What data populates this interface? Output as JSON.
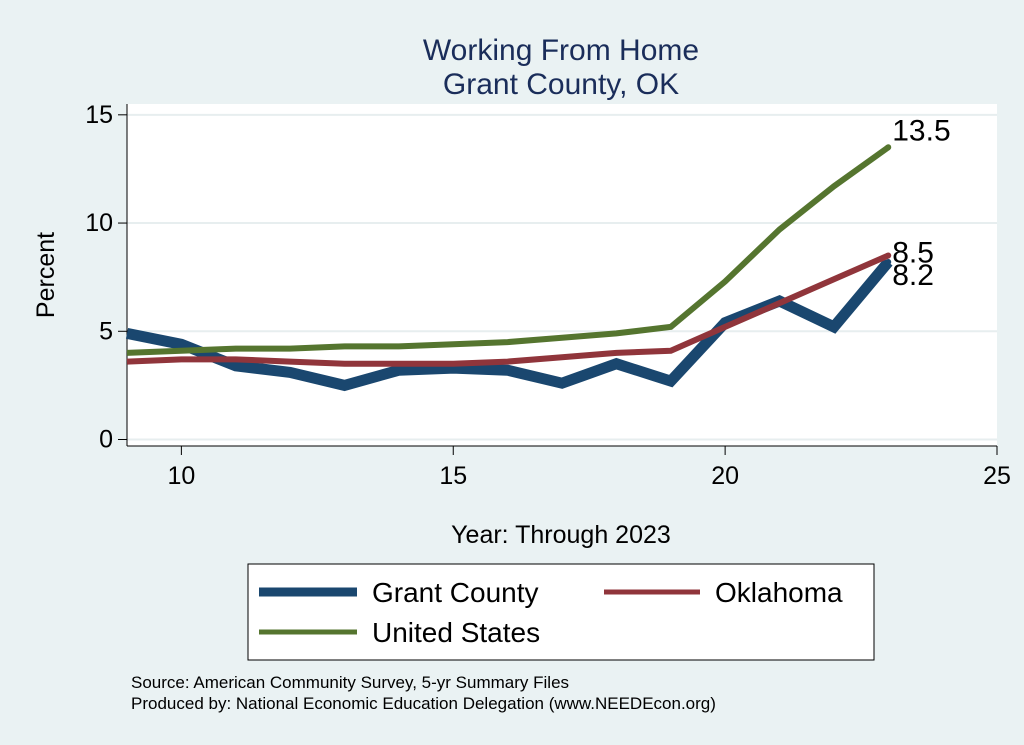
{
  "chart_data": {
    "type": "line",
    "title_lines": [
      "Working From Home",
      "Grant County, OK"
    ],
    "xlabel": "Year: Through 2023",
    "ylabel": "Percent",
    "xlim": [
      9,
      25
    ],
    "ylim": [
      -0.3,
      15.5
    ],
    "x_ticks": [
      10,
      15,
      20,
      25
    ],
    "y_ticks": [
      0,
      5,
      10,
      15
    ],
    "grid": true,
    "legend_position": "bottom",
    "x": [
      9,
      10,
      11,
      12,
      13,
      14,
      15,
      16,
      17,
      18,
      19,
      20,
      21,
      22,
      23
    ],
    "series": [
      {
        "name": "Grant County",
        "color": "#1a476f",
        "values": [
          4.9,
          4.4,
          3.4,
          3.1,
          2.5,
          3.2,
          3.3,
          3.2,
          2.6,
          3.5,
          2.7,
          5.4,
          6.4,
          5.2,
          8.2
        ],
        "end_label": "8.2"
      },
      {
        "name": "Oklahoma",
        "color": "#90353b",
        "values": [
          3.6,
          3.7,
          3.7,
          3.6,
          3.5,
          3.5,
          3.5,
          3.6,
          3.8,
          4.0,
          4.1,
          5.2,
          6.3,
          7.4,
          8.5
        ],
        "end_label": "8.5"
      },
      {
        "name": "United States",
        "color": "#55752f",
        "values": [
          4.0,
          4.1,
          4.2,
          4.2,
          4.3,
          4.3,
          4.4,
          4.5,
          4.7,
          4.9,
          5.2,
          7.3,
          9.7,
          11.7,
          13.5
        ],
        "end_label": "13.5"
      }
    ]
  },
  "footnote": {
    "source": "Source: American Community Survey, 5-yr Summary Files",
    "produced_by": "Produced by: National Economic Education Delegation (www.NEEDEcon.org)"
  }
}
